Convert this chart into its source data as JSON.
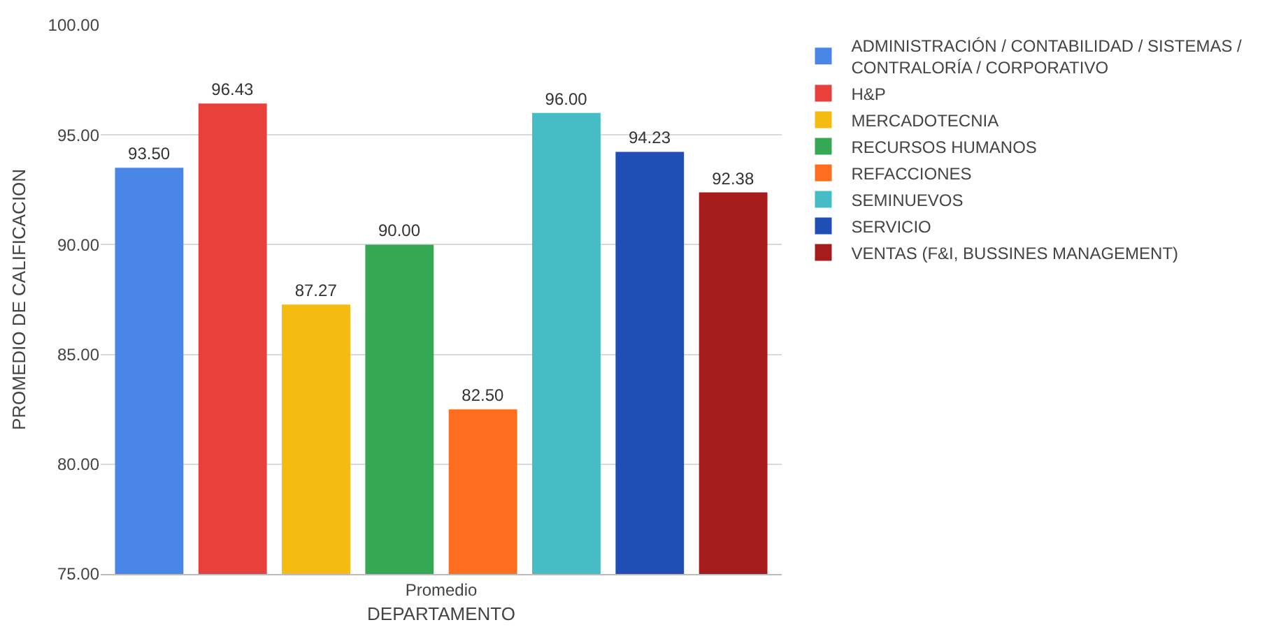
{
  "chart_data": {
    "type": "bar",
    "xlabel": "DEPARTAMENTO",
    "ylabel": "PROMEDIO DE CALIFICACION",
    "categories": [
      "Promedio"
    ],
    "series": [
      {
        "name": "ADMINISTRACIÓN / CONTABILIDAD / SISTEMAS / CONTRALORÍA / CORPORATIVO",
        "color": "#4a86e8",
        "values": [
          93.5
        ],
        "value_labels": [
          "93.50"
        ]
      },
      {
        "name": "H&P",
        "color": "#e8413c",
        "values": [
          96.43
        ],
        "value_labels": [
          "96.43"
        ]
      },
      {
        "name": "MERCADOTECNIA",
        "color": "#f5bb10",
        "values": [
          87.27
        ],
        "value_labels": [
          "87.27"
        ]
      },
      {
        "name": "RECURSOS HUMANOS",
        "color": "#34a853",
        "values": [
          90
        ],
        "value_labels": [
          "90.00"
        ]
      },
      {
        "name": "REFACCIONES",
        "color": "#ff6d1f",
        "values": [
          82.5
        ],
        "value_labels": [
          "82.50"
        ]
      },
      {
        "name": "SEMINUEVOS",
        "color": "#46bdc6",
        "values": [
          96
        ],
        "value_labels": [
          "96.00"
        ]
      },
      {
        "name": "SERVICIO",
        "color": "#1f4eb4",
        "values": [
          94.23
        ],
        "value_labels": [
          "94.23"
        ]
      },
      {
        "name": "VENTAS (F&I, BUSSINES MANAGEMENT)",
        "color": "#a61c1c",
        "values": [
          92.38
        ],
        "value_labels": [
          "92.38"
        ]
      }
    ],
    "ylim": [
      75,
      100
    ],
    "yticks": [
      {
        "value": 75,
        "label": "75.00"
      },
      {
        "value": 80,
        "label": "80.00"
      },
      {
        "value": 85,
        "label": "85.00"
      },
      {
        "value": 90,
        "label": "90.00"
      },
      {
        "value": 95,
        "label": "95.00"
      },
      {
        "value": 100,
        "label": "100.00"
      }
    ],
    "grid": "y",
    "legend": "right"
  }
}
